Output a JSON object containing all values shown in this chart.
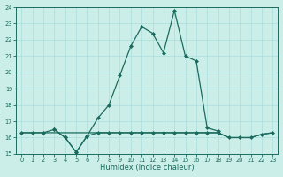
{
  "xlabel": "Humidex (Indice chaleur)",
  "x_values": [
    0,
    1,
    2,
    3,
    4,
    5,
    6,
    7,
    8,
    9,
    10,
    11,
    12,
    13,
    14,
    15,
    16,
    17,
    18,
    19,
    20,
    21,
    22,
    23
  ],
  "line_flat": [
    16.3,
    16.3,
    16.3,
    16.3,
    16.3,
    16.3,
    16.3,
    16.3,
    16.3,
    16.3,
    16.3,
    16.3,
    16.3,
    16.3,
    16.3,
    16.3,
    16.3,
    16.3,
    16.3,
    16.0,
    16.0,
    16.0,
    16.2,
    16.3
  ],
  "line_wavy": [
    16.3,
    16.3,
    16.3,
    16.5,
    16.0,
    15.1,
    16.1,
    16.3,
    16.3,
    16.3,
    16.3,
    16.3,
    16.3,
    16.3,
    16.3,
    16.3,
    16.3,
    16.3,
    16.3,
    16.0,
    16.0,
    16.0,
    16.2,
    16.3
  ],
  "line_main_x": [
    3,
    4,
    5,
    6,
    7,
    8,
    9,
    10,
    11,
    12,
    13,
    14,
    15,
    16,
    17,
    18
  ],
  "line_main_y": [
    16.5,
    16.0,
    15.1,
    16.1,
    17.2,
    18.0,
    19.8,
    21.6,
    22.8,
    22.4,
    21.2,
    23.8,
    21.0,
    20.7,
    16.6,
    16.4
  ],
  "ylim": [
    15,
    24
  ],
  "xlim": [
    -0.5,
    23.5
  ],
  "yticks": [
    15,
    16,
    17,
    18,
    19,
    20,
    21,
    22,
    23,
    24
  ],
  "xticks": [
    0,
    1,
    2,
    3,
    4,
    5,
    6,
    7,
    8,
    9,
    10,
    11,
    12,
    13,
    14,
    15,
    16,
    17,
    18,
    19,
    20,
    21,
    22,
    23
  ],
  "line_color": "#1a6b5e",
  "bg_color": "#cceee8",
  "grid_color": "#aadddd",
  "markersize": 2.0,
  "linewidth": 0.9
}
